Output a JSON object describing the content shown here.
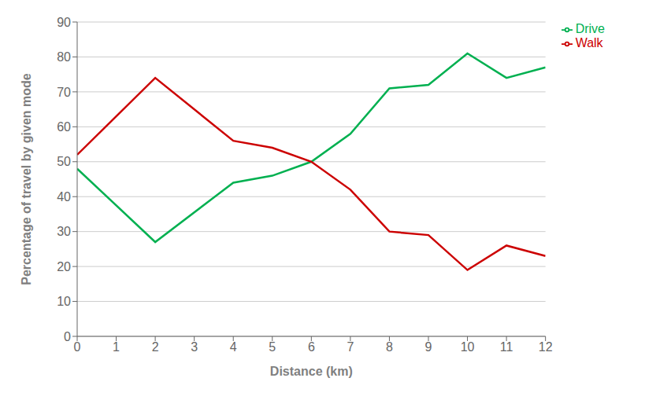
{
  "chart_data": {
    "type": "line",
    "xlabel": "Distance (km)",
    "ylabel": "Percentage of travel by given mode",
    "x": [
      0,
      2,
      4,
      5,
      6,
      7,
      8,
      9,
      10,
      11,
      12
    ],
    "series": [
      {
        "name": "Drive",
        "color": "#00b050",
        "values": [
          48,
          27,
          44,
          46,
          50,
          58,
          71,
          72,
          81,
          74,
          77
        ]
      },
      {
        "name": "Walk",
        "color": "#cc0000",
        "values": [
          52,
          74,
          56,
          54,
          50,
          42,
          30,
          29,
          19,
          26,
          23
        ]
      }
    ],
    "xlim": [
      0,
      12
    ],
    "ylim": [
      0,
      90
    ],
    "xticks": [
      0,
      1,
      2,
      3,
      4,
      5,
      6,
      7,
      8,
      9,
      10,
      11,
      12
    ],
    "yticks": [
      0,
      10,
      20,
      30,
      40,
      50,
      60,
      70,
      80,
      90
    ],
    "grid": "y",
    "legend": "right"
  }
}
